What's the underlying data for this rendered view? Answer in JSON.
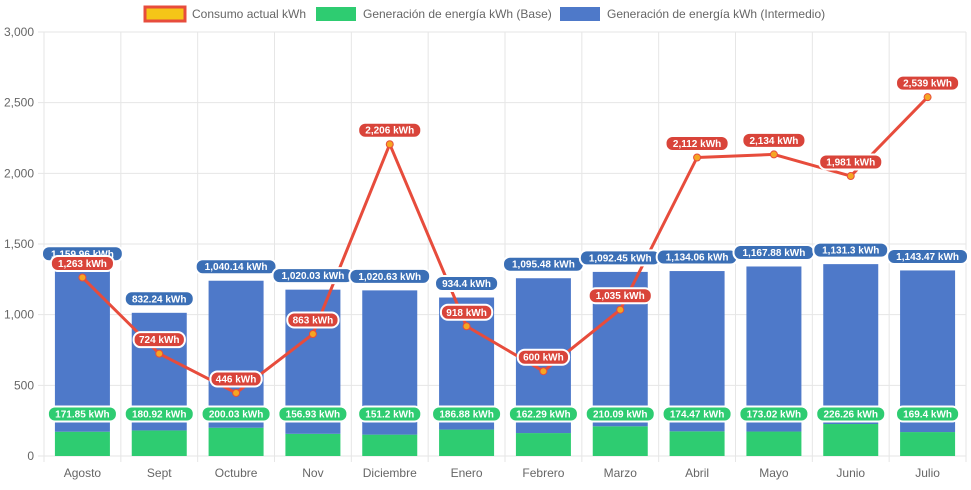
{
  "chart_data": {
    "type": "bar",
    "stacked": true,
    "title": "",
    "xlabel": "",
    "ylabel": "",
    "ylim": [
      0,
      3000
    ],
    "y_ticks": [
      "0",
      "500",
      "1,000",
      "1,500",
      "2,000",
      "2,500",
      "3,000"
    ],
    "y_tick_values": [
      0,
      500,
      1000,
      1500,
      2000,
      2500,
      3000
    ],
    "grid": true,
    "legend_position": "top",
    "categories": [
      "Agosto",
      "Sept",
      "Octubre",
      "Nov",
      "Diciembre",
      "Enero",
      "Febrero",
      "Marzo",
      "Abril",
      "Mayo",
      "Junio",
      "Julio"
    ],
    "series": [
      {
        "name": "Consumo actual kWh",
        "type": "line",
        "color": "#e74c3c",
        "point_color": "#f5a623",
        "values": [
          1263,
          724,
          446,
          863,
          2206,
          918,
          600,
          1035,
          2112,
          2134,
          1981,
          2539
        ],
        "labels": [
          "1,263 kWh",
          "724 kWh",
          "446 kWh",
          "863 kWh",
          "2,206 kWh",
          "918 kWh",
          "600 kWh",
          "1,035 kWh",
          "2,112 kWh",
          "2,134 kWh",
          "1,981 kWh",
          "2,539 kWh"
        ]
      },
      {
        "name": "Generación de energía kWh (Base)",
        "type": "bar",
        "color": "#2ecc71",
        "values": [
          171.85,
          180.92,
          200.03,
          156.93,
          151.2,
          186.88,
          162.29,
          210.09,
          174.47,
          173.02,
          226.26,
          169.4
        ],
        "labels": [
          "171.85 kWh",
          "180.92 kWh",
          "200.03 kWh",
          "156.93 kWh",
          "151.2 kWh",
          "186.88 kWh",
          "162.29 kWh",
          "210.09 kWh",
          "174.47 kWh",
          "173.02 kWh",
          "226.26 kWh",
          "169.4 kWh"
        ]
      },
      {
        "name": "Generación de energía kWh (Intermedio)",
        "type": "bar",
        "color": "#4e79c9",
        "values": [
          1159.96,
          832.24,
          1040.14,
          1020.03,
          1020.63,
          934.4,
          1095.48,
          1092.45,
          1134.06,
          1167.88,
          1131.3,
          1143.47
        ],
        "labels": [
          "1,159.96 kWh",
          "832.24 kWh",
          "1,040.14 kWh",
          "1,020.03 kWh",
          "1,020.63 kWh",
          "934.4 kWh",
          "1,095.48 kWh",
          "1,092.45 kWh",
          "1,134.06 kWh",
          "1,167.88 kWh",
          "1,131.3 kWh",
          "1,143.47 kWh"
        ]
      }
    ]
  }
}
